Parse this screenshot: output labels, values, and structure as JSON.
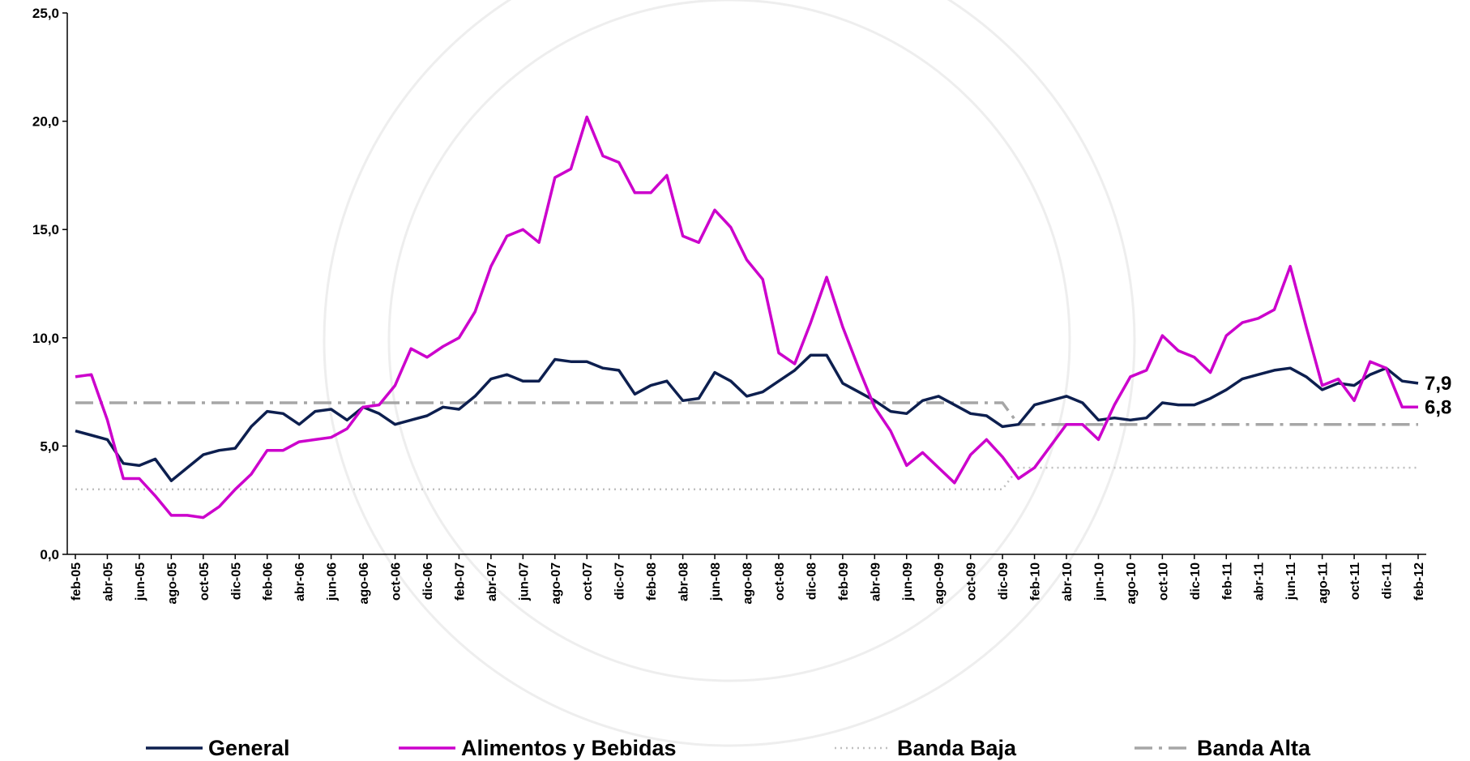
{
  "chart_data": {
    "type": "line",
    "categories": [
      "feb-05",
      null,
      "abr-05",
      null,
      "jun-05",
      null,
      "ago-05",
      null,
      "oct-05",
      null,
      "dic-05",
      null,
      "feb-06",
      null,
      "abr-06",
      null,
      "jun-06",
      null,
      "ago-06",
      null,
      "oct-06",
      null,
      "dic-06",
      null,
      "feb-07",
      null,
      "abr-07",
      null,
      "jun-07",
      null,
      "ago-07",
      null,
      "oct-07",
      null,
      "dic-07",
      null,
      "feb-08",
      null,
      "abr-08",
      null,
      "jun-08",
      null,
      "ago-08",
      null,
      "oct-08",
      null,
      "dic-08",
      null,
      "feb-09",
      null,
      "abr-09",
      null,
      "jun-09",
      null,
      "ago-09",
      null,
      "oct-09",
      null,
      "dic-09",
      null,
      "feb-10",
      null,
      "abr-10",
      null,
      "jun-10",
      null,
      "ago-10",
      null,
      "oct-10",
      null,
      "dic-10",
      null,
      "feb-11",
      null,
      "abr-11",
      null,
      "jun-11",
      null,
      "ago-11",
      null,
      "oct-11",
      null,
      "dic-11",
      null,
      "feb-12"
    ],
    "series": [
      {
        "name": "General",
        "color": "#0d1f4f",
        "style": "solid",
        "end_label": "7,9",
        "values": [
          5.7,
          5.5,
          5.3,
          4.2,
          4.1,
          4.4,
          3.4,
          4.0,
          4.6,
          4.8,
          4.9,
          5.9,
          6.6,
          6.5,
          6.0,
          6.6,
          6.7,
          6.2,
          6.8,
          6.5,
          6.0,
          6.2,
          6.4,
          6.8,
          6.7,
          7.3,
          8.1,
          8.3,
          8.0,
          8.0,
          9.0,
          8.9,
          8.9,
          8.6,
          8.5,
          7.4,
          7.8,
          8.0,
          7.1,
          7.2,
          8.4,
          8.0,
          7.3,
          7.5,
          8.0,
          8.5,
          9.2,
          9.2,
          7.9,
          7.5,
          7.1,
          6.6,
          6.5,
          7.1,
          7.3,
          6.9,
          6.5,
          6.4,
          5.9,
          6.0,
          6.9,
          7.1,
          7.3,
          7.0,
          6.2,
          6.3,
          6.2,
          6.3,
          7.0,
          6.9,
          6.9,
          7.2,
          7.6,
          8.1,
          8.3,
          8.5,
          8.6,
          8.2,
          7.6,
          7.9,
          7.8,
          8.3,
          8.6,
          8.0,
          7.9
        ]
      },
      {
        "name": "Alimentos y Bebidas",
        "color": "#cc00cc",
        "style": "solid",
        "end_label": "6,8",
        "values": [
          8.2,
          8.3,
          6.2,
          3.5,
          3.5,
          2.7,
          1.8,
          1.8,
          1.7,
          2.2,
          3.0,
          3.7,
          4.8,
          4.8,
          5.2,
          5.3,
          5.4,
          5.8,
          6.8,
          6.9,
          7.8,
          9.5,
          9.1,
          9.6,
          10.0,
          11.2,
          13.3,
          14.7,
          15.0,
          14.4,
          17.4,
          17.8,
          20.2,
          18.4,
          18.1,
          16.7,
          16.7,
          17.5,
          14.7,
          14.4,
          15.9,
          15.1,
          13.6,
          12.7,
          9.3,
          8.8,
          10.7,
          12.8,
          10.5,
          8.6,
          6.8,
          5.7,
          4.1,
          4.7,
          4.0,
          3.3,
          4.6,
          5.3,
          4.5,
          3.5,
          4.0,
          5.0,
          6.0,
          6.0,
          5.3,
          6.9,
          8.2,
          8.5,
          10.1,
          9.4,
          9.1,
          8.4,
          10.1,
          10.7,
          10.9,
          11.3,
          13.3,
          10.5,
          7.8,
          8.1,
          7.1,
          8.9,
          8.6,
          6.8,
          6.8
        ]
      },
      {
        "name": "Banda Baja",
        "color": "#c0c0c0",
        "style": "dotted",
        "values": [
          3,
          3,
          3,
          3,
          3,
          3,
          3,
          3,
          3,
          3,
          3,
          3,
          3,
          3,
          3,
          3,
          3,
          3,
          3,
          3,
          3,
          3,
          3,
          3,
          3,
          3,
          3,
          3,
          3,
          3,
          3,
          3,
          3,
          3,
          3,
          3,
          3,
          3,
          3,
          3,
          3,
          3,
          3,
          3,
          3,
          3,
          3,
          3,
          3,
          3,
          3,
          3,
          3,
          3,
          3,
          3,
          3,
          3,
          3,
          4,
          4,
          4,
          4,
          4,
          4,
          4,
          4,
          4,
          4,
          4,
          4,
          4,
          4,
          4,
          4,
          4,
          4,
          4,
          4,
          4,
          4,
          4,
          4,
          4,
          4
        ]
      },
      {
        "name": "Banda Alta",
        "color": "#a6a6a6",
        "style": "dashdot",
        "values": [
          7,
          7,
          7,
          7,
          7,
          7,
          7,
          7,
          7,
          7,
          7,
          7,
          7,
          7,
          7,
          7,
          7,
          7,
          7,
          7,
          7,
          7,
          7,
          7,
          7,
          7,
          7,
          7,
          7,
          7,
          7,
          7,
          7,
          7,
          7,
          7,
          7,
          7,
          7,
          7,
          7,
          7,
          7,
          7,
          7,
          7,
          7,
          7,
          7,
          7,
          7,
          7,
          7,
          7,
          7,
          7,
          7,
          7,
          7,
          6,
          6,
          6,
          6,
          6,
          6,
          6,
          6,
          6,
          6,
          6,
          6,
          6,
          6,
          6,
          6,
          6,
          6,
          6,
          6,
          6,
          6,
          6,
          6,
          6,
          6
        ]
      }
    ],
    "ylim": [
      0,
      25
    ],
    "yticks": [
      {
        "value": 0,
        "label": "0,0"
      },
      {
        "value": 5,
        "label": "5,0"
      },
      {
        "value": 10,
        "label": "10,0"
      },
      {
        "value": 15,
        "label": "15,0"
      },
      {
        "value": 20,
        "label": "20,0"
      },
      {
        "value": 25,
        "label": "25,0"
      }
    ],
    "grid": false,
    "legend": "bottom"
  }
}
